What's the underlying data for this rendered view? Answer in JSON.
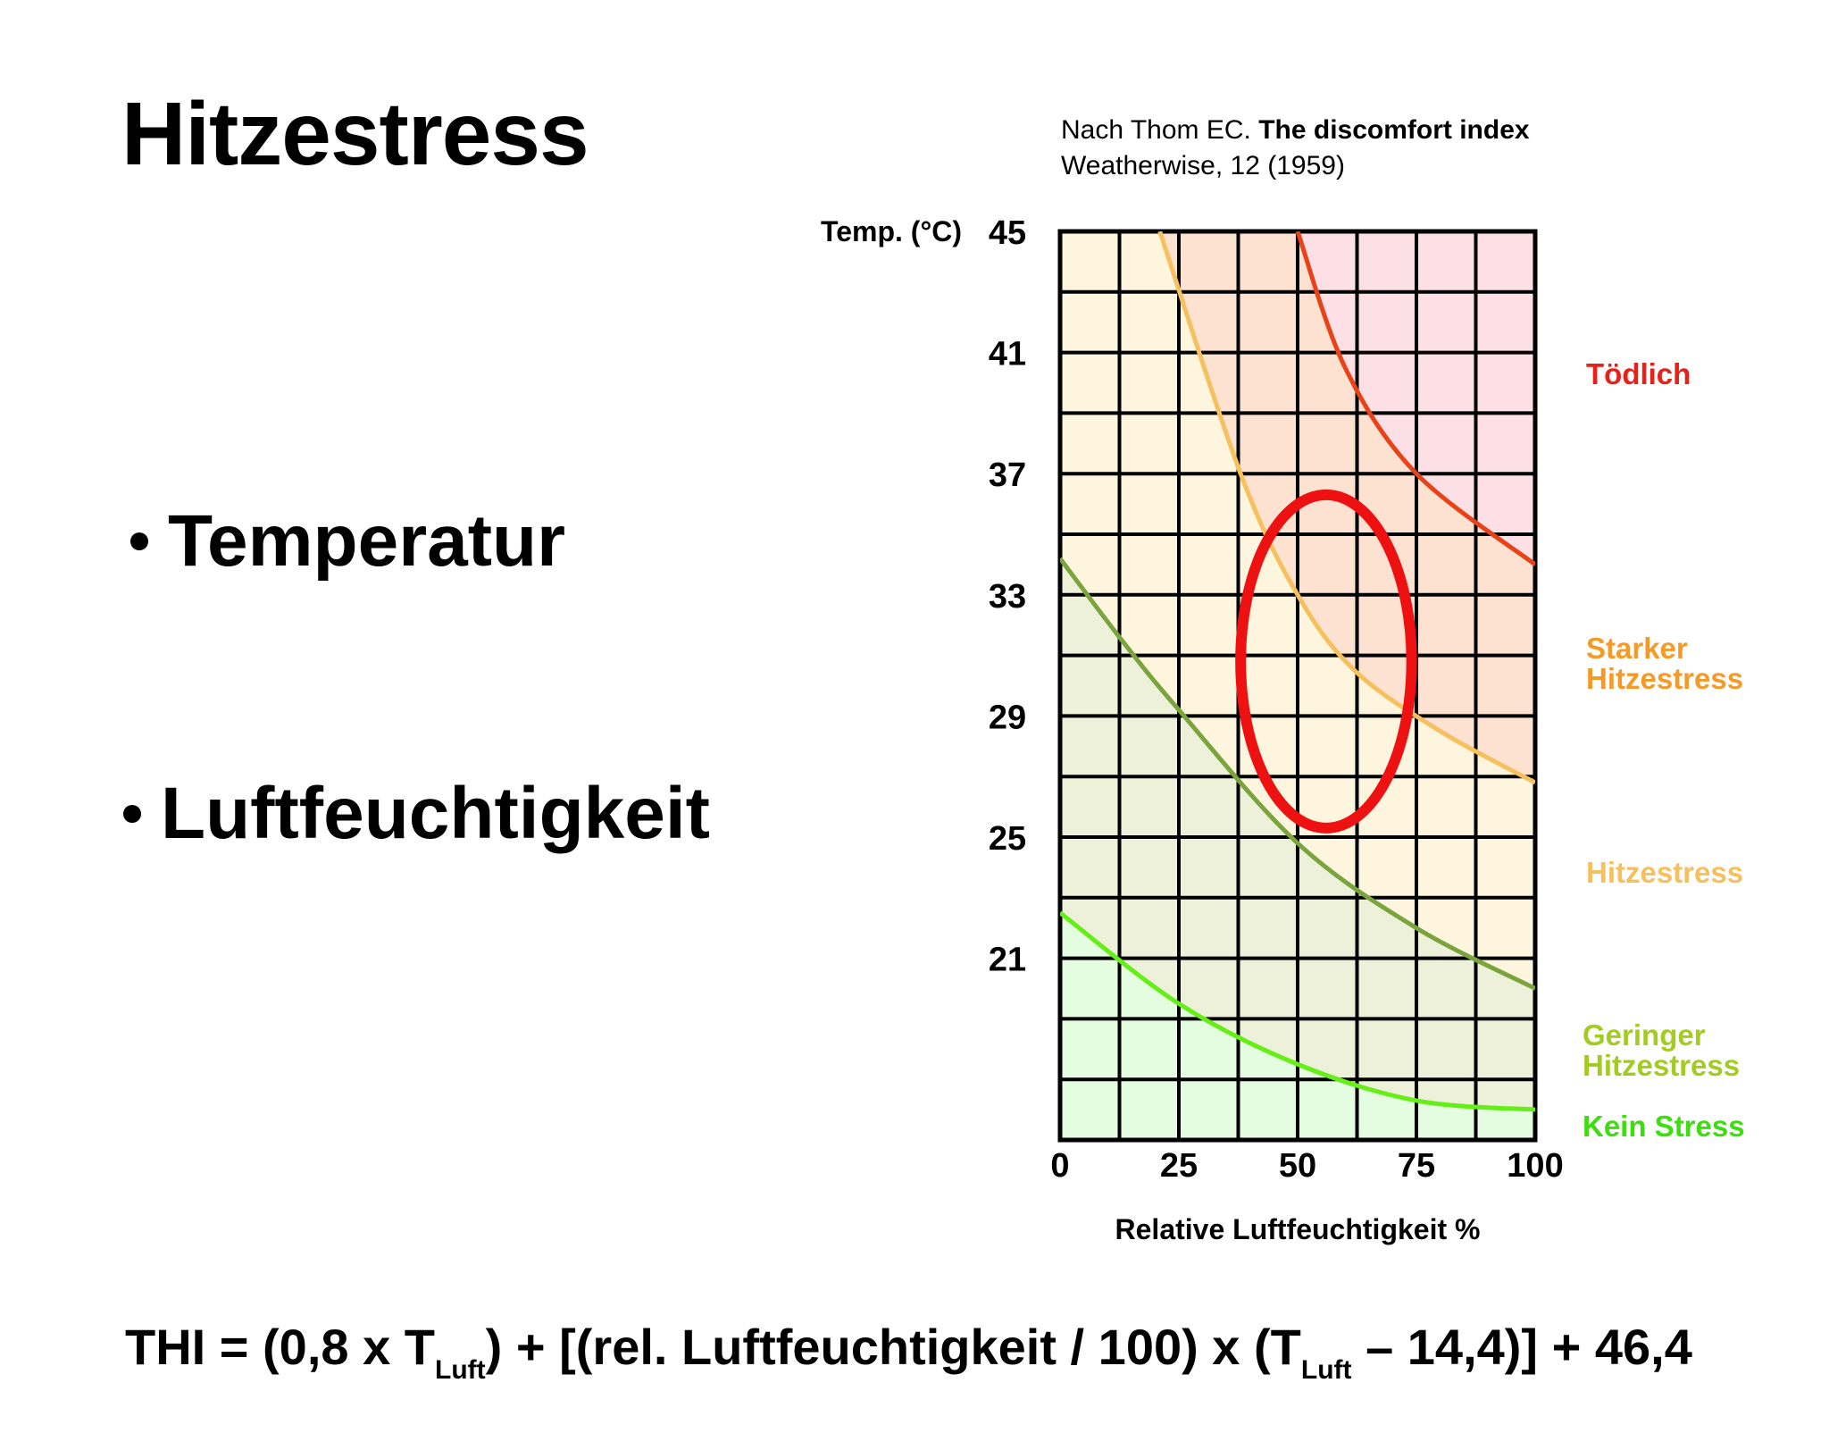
{
  "slide": {
    "title": "Hitzestress",
    "bullets": [
      "Temperatur",
      "Luftfeuchtigkeit"
    ],
    "source_prefix": "Nach Thom EC.",
    "source_bold": "The discomfort index",
    "source_line2": "Weatherwise, 12 (1959)"
  },
  "formula": {
    "part1": "THI = (0,8 x T",
    "sub1": "Luft",
    "part2": ") + [(rel. Luftfeuchtigkeit / 100) x (T",
    "sub2": "Luft",
    "part3": " – 14,4)] + 46,4"
  },
  "chart_data": {
    "type": "line",
    "title": "",
    "xlabel": "Relative Luftfeuchtigkeit %",
    "ylabel": "Temp. (°C)",
    "xlim": [
      0,
      100
    ],
    "ylim": [
      15,
      45
    ],
    "x_ticks": [
      0,
      25,
      50,
      75,
      100
    ],
    "y_ticks": [
      21,
      25,
      29,
      33,
      37,
      41,
      45
    ],
    "grid": true,
    "grid_step_x": 12.5,
    "grid_step_y": 2,
    "legend_position": "right",
    "zones": [
      {
        "name": "Tödlich",
        "color": "#e8201a",
        "fill": "#fde0e6"
      },
      {
        "name": "Starker\nHitzestress",
        "color": "#f39a28",
        "fill": "#fde2d2"
      },
      {
        "name": "Hitzestress",
        "color": "#f6c05e",
        "fill": "#fdf5de"
      },
      {
        "name": "Geringer\nHitzestress",
        "color": "#a2cc22",
        "fill": "#eef1da"
      },
      {
        "name": "Kein Stress",
        "color": "#3ddd10",
        "fill": "#e4fde0"
      }
    ],
    "series": [
      {
        "color": "#e84318",
        "points": [
          [
            50,
            45
          ],
          [
            60,
            40.5
          ],
          [
            75,
            37
          ],
          [
            100,
            34
          ]
        ]
      },
      {
        "color": "#f6c05e",
        "points": [
          [
            21,
            45
          ],
          [
            38,
            37
          ],
          [
            50,
            33
          ],
          [
            62,
            30.5
          ],
          [
            80,
            28.5
          ],
          [
            100,
            26.8
          ]
        ]
      },
      {
        "color": "#7ca43e",
        "points": [
          [
            0,
            34.2
          ],
          [
            13,
            31.5
          ],
          [
            25,
            29.2
          ],
          [
            50,
            24.8
          ],
          [
            75,
            22
          ],
          [
            100,
            20
          ]
        ]
      },
      {
        "color": "#66ee18",
        "points": [
          [
            0,
            22.5
          ],
          [
            25,
            19.5
          ],
          [
            50,
            17.5
          ],
          [
            75,
            16.3
          ],
          [
            100,
            16
          ]
        ]
      }
    ],
    "highlight": {
      "cx": 56,
      "cy": 30.8,
      "rx": 18,
      "ry": 5.5,
      "color": "#ee1111"
    }
  }
}
